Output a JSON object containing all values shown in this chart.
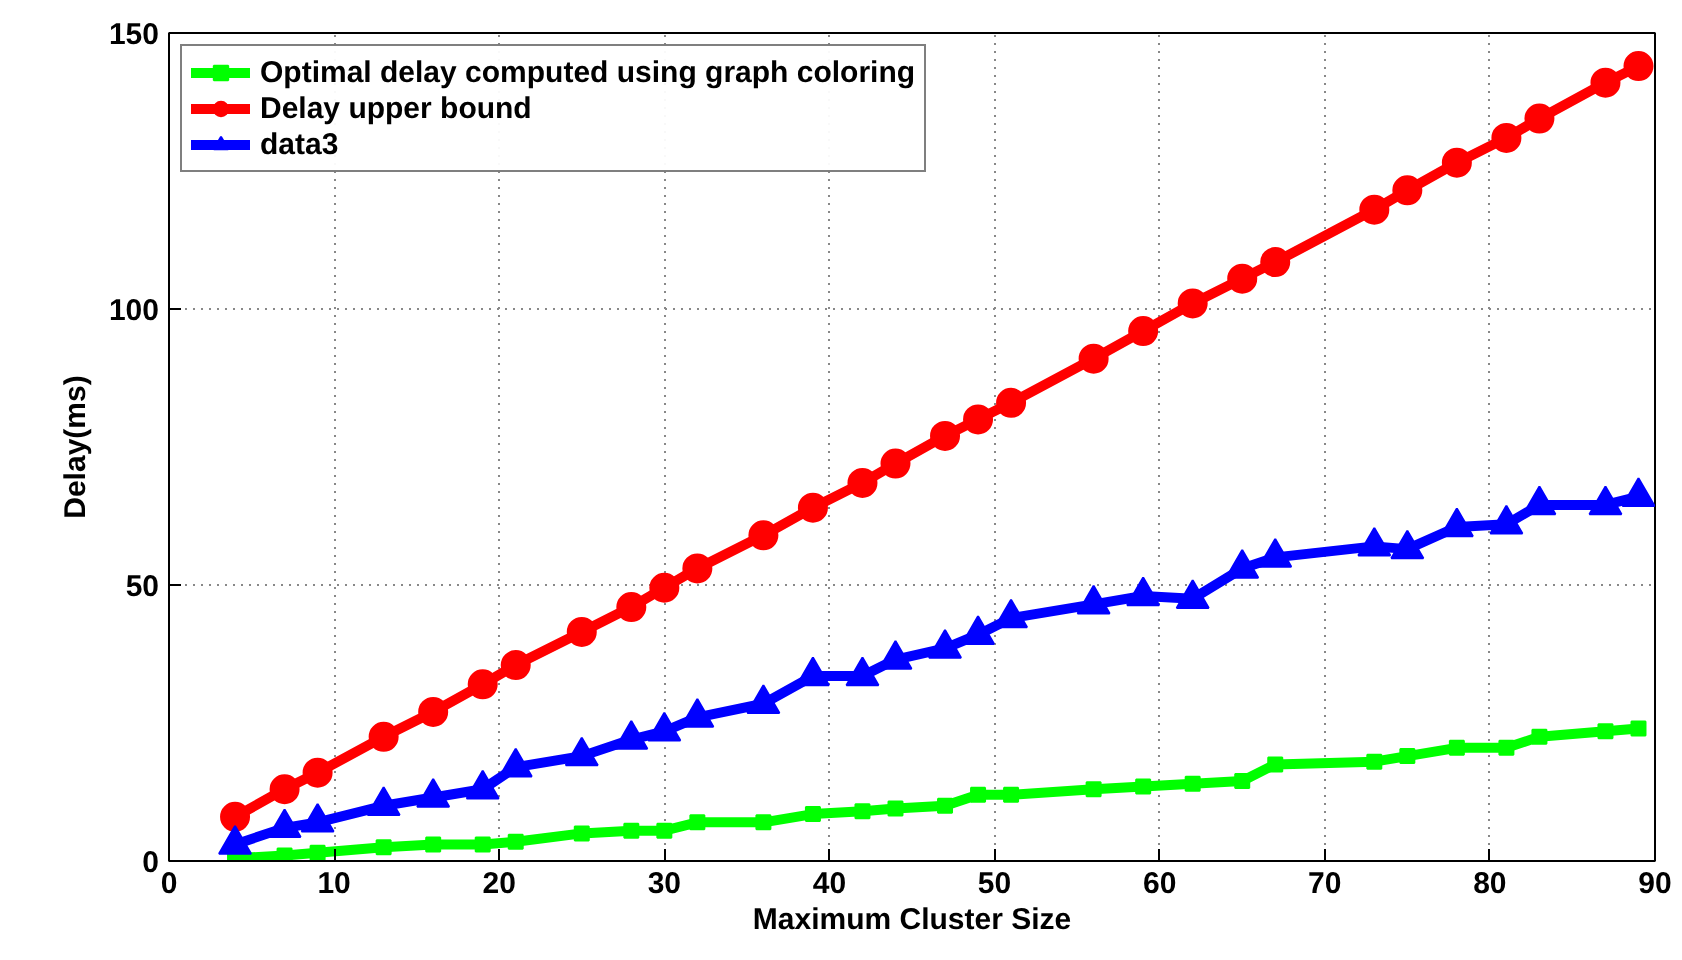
{
  "chart_data": {
    "type": "line",
    "xlabel": "Maximum Cluster Size",
    "ylabel": "Delay(ms)",
    "x": [
      4,
      7,
      9,
      13,
      16,
      19,
      21,
      25,
      28,
      30,
      32,
      36,
      39,
      42,
      44,
      47,
      49,
      51,
      56,
      59,
      62,
      65,
      67,
      73,
      75,
      78,
      81,
      83,
      87,
      89
    ],
    "series": [
      {
        "name": "Optimal delay computed using graph coloring",
        "color": "#00ff00",
        "marker": "square",
        "values": [
          0.5,
          1,
          1.5,
          2.5,
          3,
          3,
          3.5,
          5,
          5.5,
          5.5,
          7,
          7,
          8.5,
          9,
          9.5,
          10,
          12,
          12,
          13,
          13.5,
          14,
          14.5,
          17.5,
          18,
          19,
          20.5,
          20.5,
          22.5,
          23.5,
          24
        ]
      },
      {
        "name": "Delay upper bound",
        "color": "#ff0000",
        "marker": "circle",
        "values": [
          8,
          13,
          16,
          22.5,
          27,
          32,
          35.5,
          41.5,
          46,
          49.5,
          53,
          59,
          64,
          68.5,
          72,
          77,
          80,
          83,
          91,
          96,
          101,
          105.5,
          108.5,
          118,
          121.5,
          126.5,
          131,
          134.5,
          141,
          144
        ]
      },
      {
        "name": "data3",
        "color": "#0000ff",
        "marker": "triangle",
        "values": [
          3,
          6,
          7,
          10,
          11.5,
          13,
          17,
          19,
          22,
          23.5,
          26,
          28.5,
          33.5,
          33.5,
          36.5,
          38.5,
          41,
          44,
          46.5,
          48,
          47.5,
          53,
          55,
          57,
          56.5,
          60.5,
          61,
          64.5,
          64.5,
          66
        ]
      }
    ],
    "xlim": [
      0,
      90
    ],
    "xticks": [
      0,
      10,
      20,
      30,
      40,
      50,
      60,
      70,
      80,
      90
    ],
    "ylim": [
      0,
      150
    ],
    "yticks": [
      0,
      50,
      100,
      150
    ],
    "grid": true,
    "legend": "top left",
    "line_style": "solid"
  }
}
